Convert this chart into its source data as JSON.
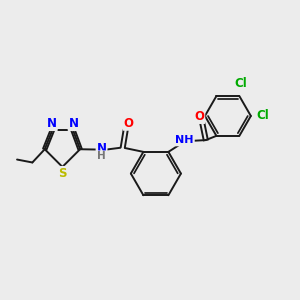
{
  "bg_color": "#ececec",
  "bond_color": "#1a1a1a",
  "bond_width": 1.4,
  "atom_colors": {
    "N": "#0000ff",
    "O": "#ff0000",
    "S": "#bbbb00",
    "Cl": "#00aa00",
    "H": "#777777"
  },
  "font_size": 8.5,
  "fig_size": [
    3.0,
    3.0
  ],
  "dpi": 100
}
